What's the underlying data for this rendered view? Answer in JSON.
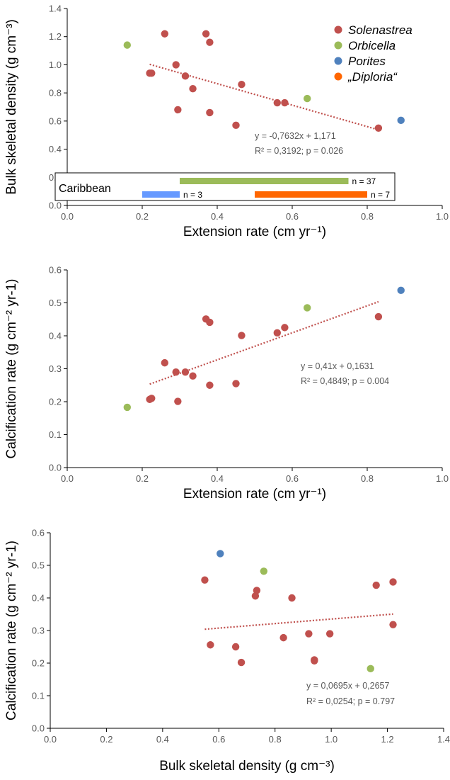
{
  "colors": {
    "Solenastrea": "#c0504d",
    "Orbicella": "#9bbb59",
    "Porites": "#4f81bd",
    "Diploria": "#ff6600",
    "trendline": "#c0504d",
    "inset_green": "#9bbb59",
    "inset_blue": "#6699ff",
    "inset_orange": "#ff6600"
  },
  "chart_data": [
    {
      "type": "scatter",
      "title": "",
      "xlabel": "Extension rate (cm yr⁻¹)",
      "ylabel": "Bulk skeletal density (g cm⁻³)",
      "xlim": [
        0,
        1.0
      ],
      "ylim": [
        0,
        1.4
      ],
      "x_ticks": [
        "0.0",
        "0.2",
        "0.4",
        "0.6",
        "0.8",
        "1.0"
      ],
      "y_ticks": [
        "0.0",
        "0.2",
        "0.4",
        "0.6",
        "0.8",
        "1.0",
        "1.2",
        "1.4"
      ],
      "grid": false,
      "legend_placement": "top-right",
      "legend": [
        "Solenastrea",
        "Orbicella",
        "Porites",
        "„Diploria“"
      ],
      "series": [
        {
          "name": "Solenastrea",
          "points": [
            [
              0.22,
              0.94
            ],
            [
              0.225,
              0.94
            ],
            [
              0.26,
              1.22
            ],
            [
              0.29,
              1.0
            ],
            [
              0.295,
              0.68
            ],
            [
              0.315,
              0.92
            ],
            [
              0.335,
              0.83
            ],
            [
              0.37,
              1.22
            ],
            [
              0.38,
              1.16
            ],
            [
              0.38,
              0.66
            ],
            [
              0.45,
              0.57
            ],
            [
              0.465,
              0.86
            ],
            [
              0.56,
              0.73
            ],
            [
              0.58,
              0.73
            ],
            [
              0.83,
              0.55
            ]
          ]
        },
        {
          "name": "Orbicella",
          "points": [
            [
              0.16,
              1.14
            ],
            [
              0.64,
              0.76
            ]
          ]
        },
        {
          "name": "Porites",
          "points": [
            [
              0.89,
              0.605
            ]
          ]
        },
        {
          "name": "„Diploria“",
          "points": []
        }
      ],
      "trendline": {
        "slope": -0.7632,
        "intercept": 1.171,
        "x_range": [
          0.22,
          0.83
        ]
      },
      "equation": "y = -0,7632x + 1,171",
      "stats": "R² = 0,3192; p = 0.026",
      "inset": {
        "title": "Caribbean",
        "bars": [
          {
            "series": "Orbicella",
            "x_range": [
              0.3,
              0.75
            ],
            "label": "n = 37"
          },
          {
            "series": "Porites",
            "x_range": [
              0.2,
              0.3
            ],
            "label": "n = 3"
          },
          {
            "series": "Diploria",
            "x_range": [
              0.5,
              0.8
            ],
            "label": "n = 7"
          }
        ]
      }
    },
    {
      "type": "scatter",
      "title": "",
      "xlabel": "Extension rate (cm yr⁻¹)",
      "ylabel": "Calcification rate (g cm⁻² yr-1)",
      "xlim": [
        0,
        1.0
      ],
      "ylim": [
        0,
        0.6
      ],
      "x_ticks": [
        "0.0",
        "0.2",
        "0.4",
        "0.6",
        "0.8",
        "1.0"
      ],
      "y_ticks": [
        "0.0",
        "0.1",
        "0.2",
        "0.3",
        "0.4",
        "0.5",
        "0.6"
      ],
      "grid": false,
      "series": [
        {
          "name": "Solenastrea",
          "points": [
            [
              0.22,
              0.207
            ],
            [
              0.225,
              0.21
            ],
            [
              0.26,
              0.318
            ],
            [
              0.29,
              0.29
            ],
            [
              0.295,
              0.201
            ],
            [
              0.315,
              0.29
            ],
            [
              0.335,
              0.278
            ],
            [
              0.37,
              0.451
            ],
            [
              0.38,
              0.441
            ],
            [
              0.38,
              0.25
            ],
            [
              0.45,
              0.255
            ],
            [
              0.465,
              0.401
            ],
            [
              0.56,
              0.409
            ],
            [
              0.58,
              0.425
            ],
            [
              0.83,
              0.458
            ]
          ]
        },
        {
          "name": "Orbicella",
          "points": [
            [
              0.16,
              0.183
            ],
            [
              0.64,
              0.485
            ]
          ]
        },
        {
          "name": "Porites",
          "points": [
            [
              0.89,
              0.538
            ]
          ]
        }
      ],
      "trendline": {
        "slope": 0.41,
        "intercept": 0.1631,
        "x_range": [
          0.22,
          0.83
        ]
      },
      "equation": "y = 0,41x + 0,1631",
      "stats": "R² = 0,4849; p = 0.004"
    },
    {
      "type": "scatter",
      "title": "",
      "xlabel": "Bulk skeletal density (g cm⁻³)",
      "ylabel": "Calcification rate (g cm⁻² yr-1)",
      "xlim": [
        0,
        1.4
      ],
      "ylim": [
        0,
        0.6
      ],
      "x_ticks": [
        "0.0",
        "0.2",
        "0.4",
        "0.6",
        "0.8",
        "1.0",
        "1.2",
        "1.4"
      ],
      "y_ticks": [
        "0.0",
        "0.1",
        "0.2",
        "0.3",
        "0.4",
        "0.5",
        "0.6"
      ],
      "grid": false,
      "series": [
        {
          "name": "Solenastrea",
          "points": [
            [
              0.55,
              0.455
            ],
            [
              0.57,
              0.256
            ],
            [
              0.66,
              0.25
            ],
            [
              0.68,
              0.202
            ],
            [
              0.73,
              0.406
            ],
            [
              0.735,
              0.423
            ],
            [
              0.83,
              0.278
            ],
            [
              0.86,
              0.4
            ],
            [
              0.92,
              0.29
            ],
            [
              0.94,
              0.21
            ],
            [
              0.94,
              0.207
            ],
            [
              0.995,
              0.29
            ],
            [
              1.16,
              0.439
            ],
            [
              1.22,
              0.449
            ],
            [
              1.22,
              0.318
            ]
          ]
        },
        {
          "name": "Orbicella",
          "points": [
            [
              0.76,
              0.482
            ],
            [
              1.14,
              0.183
            ]
          ]
        },
        {
          "name": "Porites",
          "points": [
            [
              0.605,
              0.536
            ]
          ]
        }
      ],
      "trendline": {
        "slope": 0.0695,
        "intercept": 0.2657,
        "x_range": [
          0.55,
          1.22
        ]
      },
      "equation": "y = 0,0695x + 0,2657",
      "stats": "R² = 0,0254; p = 0.797"
    }
  ]
}
